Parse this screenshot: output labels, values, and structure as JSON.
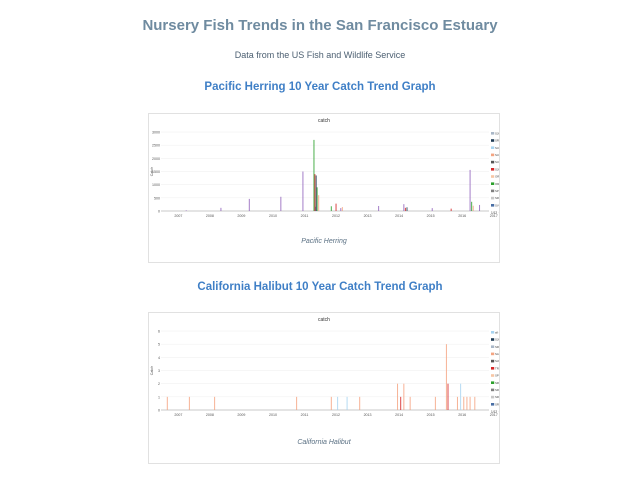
{
  "page": {
    "title": "Nursery Fish Trends in the San Francisco Estuary",
    "subtitle": "Data from the US Fish and Wildlife Service"
  },
  "sections": [
    {
      "heading": "Pacific Herring 10 Year Catch Trend Graph",
      "caption": "Pacific Herring",
      "legend_pager": "1/12 ▼"
    },
    {
      "heading": "California Halibut 10 Year Catch Trend Graph",
      "caption": "California Halibut",
      "legend_pager": "1/12 ▼"
    }
  ],
  "chart_data": [
    {
      "type": "bar",
      "title": "catch",
      "ylabel": "Catch",
      "xlabel": "",
      "ylim": [
        0,
        3000
      ],
      "yticks": [
        "0",
        "500",
        "1000",
        "1500",
        "2000",
        "2500",
        "3000"
      ],
      "xticks": [
        "2007",
        "2008",
        "2009",
        "2010",
        "2011",
        "2012",
        "2013",
        "2014",
        "2015",
        "2016",
        "2017"
      ],
      "legend_position": "right",
      "legend": [
        {
          "label": "SJ005S catch",
          "color": "#aab8c8"
        },
        {
          "label": "SR037E catch",
          "color": "#1f3b55"
        },
        {
          "label": "SUI0N catch",
          "color": "#a8d4f0"
        },
        {
          "label": "SUI16E catch",
          "color": "#f4a582"
        },
        {
          "label": "SUI76W catch",
          "color": "#555555"
        },
        {
          "label": "SJ040W catch",
          "color": "#d62728"
        },
        {
          "label": "ORO154N catch",
          "color": "#f7c6a5"
        },
        {
          "label": "ORO154E catch",
          "color": "#2ca02c"
        },
        {
          "label": "SP004E catch",
          "color": "#7f7f7f"
        },
        {
          "label": "SR037W catch",
          "color": "#c7c7c7"
        },
        {
          "label": "SV024E catch",
          "color": "#4a6fa5"
        }
      ],
      "series": [
        {
          "color": "#9467bd",
          "x": [
            2007.4,
            2008.5,
            2009.4,
            2010.4,
            2011.1,
            2011.5,
            2012.3,
            2013.5,
            2014.3,
            2015.2,
            2016.4,
            2016.7
          ],
          "values": [
            25,
            120,
            460,
            540,
            1500,
            160,
            110,
            190,
            260,
            110,
            1560,
            230
          ]
        },
        {
          "color": "#2ca02c",
          "x": [
            2011.45,
            2011.55,
            2012.0,
            2016.45
          ],
          "values": [
            2700,
            900,
            180,
            350
          ]
        },
        {
          "color": "#d62728",
          "x": [
            2011.48,
            2012.15,
            2014.35,
            2015.8
          ],
          "values": [
            1400,
            280,
            120,
            90
          ]
        },
        {
          "color": "#f4a582",
          "x": [
            2011.6,
            2012.35,
            2016.5
          ],
          "values": [
            600,
            150,
            200
          ]
        },
        {
          "color": "#1f3b55",
          "x": [
            2011.52,
            2014.4
          ],
          "values": [
            1350,
            140
          ]
        }
      ]
    },
    {
      "type": "bar",
      "title": "catch",
      "ylabel": "Catch",
      "xlabel": "",
      "ylim": [
        0,
        6
      ],
      "yticks": [
        "0",
        "1",
        "2",
        "3",
        "4",
        "5",
        "6"
      ],
      "xticks": [
        "2007",
        "2008",
        "2009",
        "2010",
        "2011",
        "2012",
        "2013",
        "2014",
        "2015",
        "2016",
        "2017"
      ],
      "legend_position": "right",
      "legend": [
        {
          "label": "all catch",
          "color": "#a8d4f0"
        },
        {
          "label": "SJ001S catch",
          "color": "#1f3b55"
        },
        {
          "label": "SR036N catch",
          "color": "#aab8c8"
        },
        {
          "label": "SA007E catch",
          "color": "#f4a582"
        },
        {
          "label": "SJ040W catch",
          "color": "#555555"
        },
        {
          "label": "TR005W catch",
          "color": "#d62728"
        },
        {
          "label": "SP003W catch",
          "color": "#f7c6a5"
        },
        {
          "label": "SR018N catch",
          "color": "#2ca02c"
        },
        {
          "label": "SR018N catch",
          "color": "#7f7f7f"
        },
        {
          "label": "SR018S catch",
          "color": "#c7c7c7"
        },
        {
          "label": "SR018E catch",
          "color": "#4a6fa5"
        }
      ],
      "series": [
        {
          "color": "#f4a582",
          "x": [
            2006.8,
            2007.5,
            2008.3,
            2010.9,
            2012.0,
            2012.9,
            2014.1,
            2014.3,
            2014.5,
            2015.3,
            2015.65,
            2016.0,
            2016.2,
            2016.3,
            2016.4,
            2016.55
          ],
          "values": [
            1,
            1,
            1,
            1,
            1,
            1,
            2,
            2,
            1,
            1,
            5,
            1,
            1,
            1,
            1,
            1
          ]
        },
        {
          "color": "#a8d4f0",
          "x": [
            2012.2,
            2012.5,
            2016.1
          ],
          "values": [
            1,
            1,
            2
          ]
        },
        {
          "color": "#d62728",
          "x": [
            2014.2,
            2015.7
          ],
          "values": [
            1,
            2
          ]
        }
      ]
    }
  ]
}
